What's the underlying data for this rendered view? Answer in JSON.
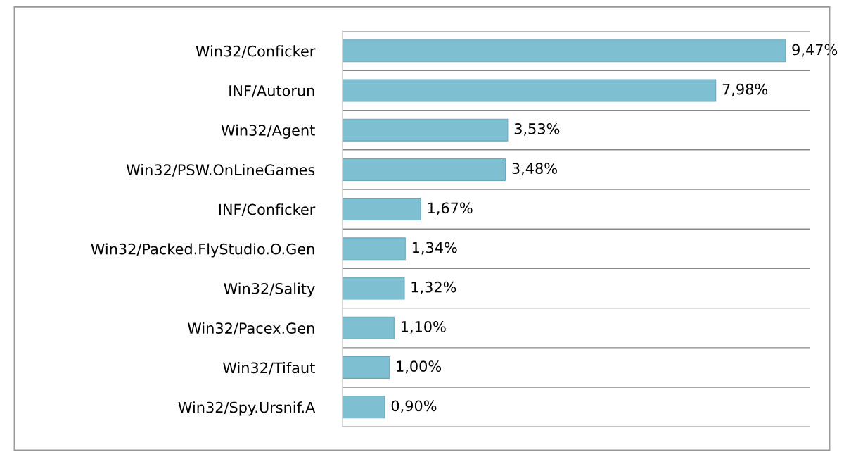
{
  "chart_data": {
    "type": "bar",
    "orientation": "horizontal",
    "categories": [
      "Win32/Conficker",
      "INF/Autorun",
      "Win32/Agent",
      "Win32/PSW.OnLineGames",
      "INF/Conficker",
      "Win32/Packed.FlyStudio.O.Gen",
      "Win32/Sality",
      "Win32/Pacex.Gen",
      "Win32/Tifaut",
      "Win32/Spy.Ursnif.A"
    ],
    "values": [
      9.47,
      7.98,
      3.53,
      3.48,
      1.67,
      1.34,
      1.32,
      1.1,
      1.0,
      0.9
    ],
    "value_labels": [
      "9,47%",
      "7,98%",
      "3,53%",
      "3,48%",
      "1,67%",
      "1,34%",
      "1,32%",
      "1,10%",
      "1,00%",
      "0,90%"
    ],
    "color": "#7fbfd2",
    "xlim": [
      0,
      10
    ],
    "grid": "y"
  }
}
